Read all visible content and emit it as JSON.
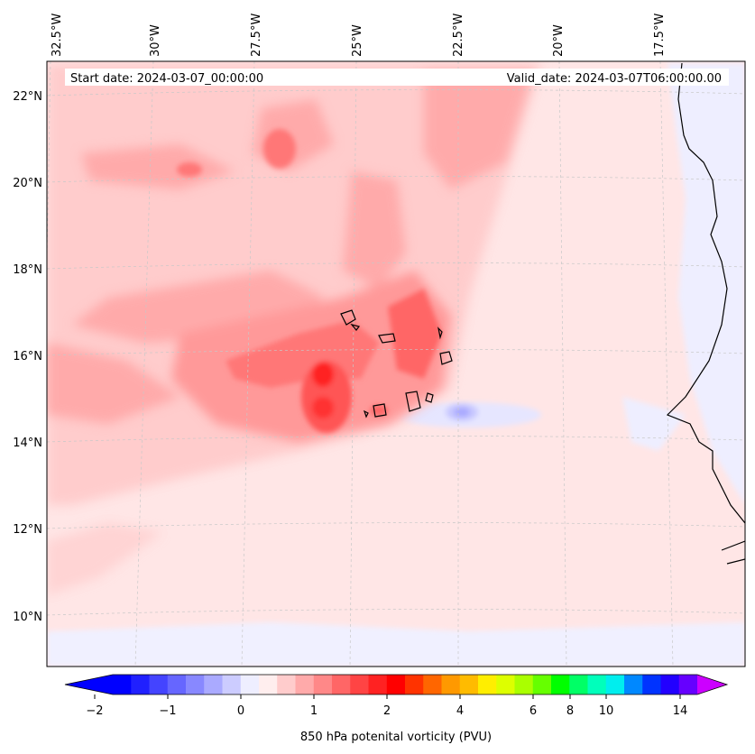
{
  "header": {
    "start_date": "Start date: 2024-03-07_00:00:00",
    "valid_date": "Valid_date: 2024-03-07T06:00:00.00"
  },
  "map": {
    "lon_labels": [
      "32.5°W",
      "30°W",
      "27.5°W",
      "25°W",
      "22.5°W",
      "20°W",
      "17.5°W"
    ],
    "lat_labels": [
      "22°N",
      "20°N",
      "18°N",
      "16°N",
      "14°N",
      "12°N",
      "10°N"
    ],
    "colors": {
      "background_fill": "#ffe6e6",
      "coastline": "#000000",
      "gridline": "#c8c8c8"
    }
  },
  "colorbar": {
    "label": "850 hPa potenital vorticity (PVU)",
    "tick_labels": [
      "−2",
      "−1",
      "0",
      "1",
      "2",
      "4",
      "6",
      "8",
      "10",
      "14"
    ],
    "colors": [
      "#0000ff",
      "#2020ff",
      "#4444ff",
      "#6666ff",
      "#8888ff",
      "#aaaaff",
      "#ccccff",
      "#eeeeff",
      "#ffeeee",
      "#ffcccc",
      "#ffaaaa",
      "#ff8888",
      "#ff6666",
      "#ff4444",
      "#ff2222",
      "#ff0000",
      "#ff3300",
      "#ff6600",
      "#ff9900",
      "#ffbb00",
      "#ffee00",
      "#ddff00",
      "#aaff00",
      "#66ff00",
      "#00ff00",
      "#00ff66",
      "#00ffbb",
      "#00eeee",
      "#0088ff",
      "#0033ff",
      "#2200ff",
      "#6600ff"
    ],
    "extend_min_color": "#0000ff",
    "extend_max_color": "#cc00ff"
  }
}
